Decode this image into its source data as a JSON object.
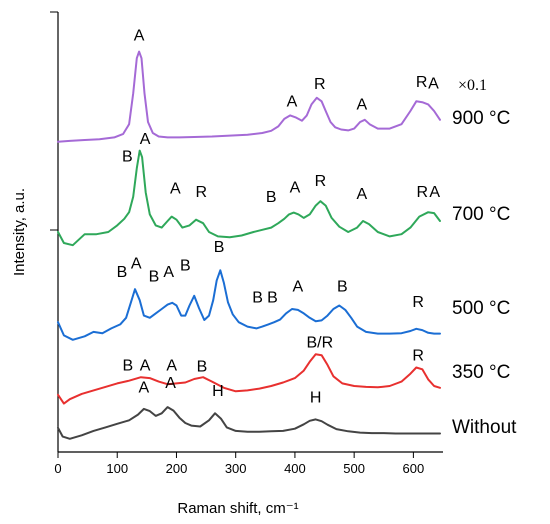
{
  "chart_data": {
    "type": "line",
    "title": "",
    "xlabel": "Raman shift, cm⁻¹",
    "ylabel": "Intensity, a.u.",
    "xlim": [
      0,
      650
    ],
    "xticks": [
      0,
      100,
      200,
      300,
      400,
      500,
      600
    ],
    "ylim": [
      0,
      1.0
    ],
    "grid": false,
    "series": [
      {
        "name": "Without",
        "color": "#444444",
        "offset": 0.03,
        "x": [
          0,
          8,
          20,
          40,
          60,
          80,
          100,
          120,
          135,
          145,
          155,
          165,
          175,
          185,
          195,
          205,
          215,
          225,
          240,
          255,
          265,
          275,
          285,
          300,
          320,
          340,
          360,
          380,
          400,
          415,
          425,
          435,
          445,
          455,
          470,
          490,
          510,
          530,
          550,
          570,
          590,
          610,
          630,
          645
        ],
        "y": [
          0.025,
          0.005,
          0.0,
          0.008,
          0.018,
          0.026,
          0.034,
          0.042,
          0.055,
          0.068,
          0.063,
          0.052,
          0.058,
          0.072,
          0.064,
          0.048,
          0.036,
          0.03,
          0.028,
          0.042,
          0.058,
          0.046,
          0.026,
          0.018,
          0.016,
          0.016,
          0.017,
          0.018,
          0.023,
          0.033,
          0.041,
          0.044,
          0.04,
          0.032,
          0.022,
          0.017,
          0.014,
          0.013,
          0.013,
          0.012,
          0.012,
          0.012,
          0.012,
          0.012
        ],
        "peak_labels": [
          {
            "text": "A",
            "x": 145,
            "y": 0.105
          },
          {
            "text": "A",
            "x": 190,
            "y": 0.115
          },
          {
            "text": "H",
            "x": 270,
            "y": 0.097
          },
          {
            "text": "H",
            "x": 435,
            "y": 0.083
          }
        ]
      },
      {
        "name": "350 °C",
        "color": "#e8302f",
        "offset": 0.11,
        "x": [
          0,
          10,
          20,
          40,
          60,
          80,
          100,
          120,
          140,
          155,
          170,
          185,
          200,
          215,
          230,
          245,
          260,
          280,
          300,
          320,
          340,
          360,
          380,
          400,
          415,
          425,
          435,
          445,
          455,
          465,
          480,
          500,
          520,
          540,
          560,
          580,
          595,
          605,
          615,
          625,
          635,
          645
        ],
        "y": [
          0.02,
          0.0,
          0.01,
          0.022,
          0.03,
          0.038,
          0.046,
          0.052,
          0.06,
          0.058,
          0.05,
          0.044,
          0.046,
          0.048,
          0.056,
          0.06,
          0.05,
          0.036,
          0.028,
          0.03,
          0.034,
          0.04,
          0.048,
          0.058,
          0.075,
          0.095,
          0.112,
          0.11,
          0.088,
          0.062,
          0.046,
          0.04,
          0.038,
          0.037,
          0.04,
          0.05,
          0.068,
          0.082,
          0.078,
          0.055,
          0.04,
          0.036
        ],
        "peak_labels": [
          {
            "text": "B",
            "x": 118,
            "y": 0.075
          },
          {
            "text": "A",
            "x": 147,
            "y": 0.075
          },
          {
            "text": "A",
            "x": 192,
            "y": 0.075
          },
          {
            "text": "B",
            "x": 243,
            "y": 0.073
          },
          {
            "text": "B/R",
            "x": 442,
            "y": 0.127
          },
          {
            "text": "R",
            "x": 608,
            "y": 0.098
          }
        ]
      },
      {
        "name": "500 °C",
        "color": "#1b6ed4",
        "offset": 0.255,
        "x": [
          0,
          10,
          25,
          45,
          60,
          75,
          90,
          105,
          115,
          123,
          130,
          138,
          145,
          155,
          165,
          175,
          185,
          193,
          200,
          208,
          215,
          222,
          230,
          238,
          247,
          255,
          262,
          268,
          274,
          280,
          287,
          295,
          305,
          320,
          335,
          345,
          355,
          365,
          375,
          385,
          395,
          405,
          415,
          425,
          435,
          445,
          455,
          465,
          475,
          485,
          495,
          505,
          520,
          540,
          560,
          580,
          595,
          605,
          615,
          625,
          635,
          645
        ],
        "y": [
          0.04,
          0.01,
          0.0,
          0.008,
          0.018,
          0.015,
          0.026,
          0.035,
          0.05,
          0.085,
          0.115,
          0.09,
          0.055,
          0.05,
          0.06,
          0.07,
          0.08,
          0.084,
          0.078,
          0.055,
          0.055,
          0.078,
          0.1,
          0.072,
          0.045,
          0.055,
          0.09,
          0.135,
          0.158,
          0.13,
          0.085,
          0.058,
          0.04,
          0.03,
          0.026,
          0.03,
          0.035,
          0.04,
          0.046,
          0.06,
          0.07,
          0.068,
          0.06,
          0.05,
          0.042,
          0.044,
          0.055,
          0.07,
          0.078,
          0.068,
          0.05,
          0.03,
          0.018,
          0.014,
          0.014,
          0.015,
          0.02,
          0.025,
          0.022,
          0.016,
          0.014,
          0.014
        ],
        "peak_labels": [
          {
            "text": "B",
            "x": 108,
            "y": 0.143
          },
          {
            "text": "A",
            "x": 132,
            "y": 0.162
          },
          {
            "text": "B",
            "x": 162,
            "y": 0.133
          },
          {
            "text": "A",
            "x": 187,
            "y": 0.143
          },
          {
            "text": "B",
            "x": 215,
            "y": 0.157
          },
          {
            "text": "B",
            "x": 272,
            "y": 0.2
          },
          {
            "text": "B",
            "x": 337,
            "y": 0.085
          },
          {
            "text": "B",
            "x": 362,
            "y": 0.085
          },
          {
            "text": "A",
            "x": 405,
            "y": 0.11
          },
          {
            "text": "B",
            "x": 480,
            "y": 0.11
          },
          {
            "text": "R",
            "x": 608,
            "y": 0.075
          }
        ]
      },
      {
        "name": "700 °C",
        "color": "#2fa85a",
        "offset": 0.47,
        "x": [
          0,
          10,
          25,
          45,
          65,
          85,
          100,
          112,
          120,
          127,
          133,
          138,
          142,
          148,
          155,
          165,
          175,
          185,
          192,
          200,
          210,
          222,
          233,
          245,
          255,
          270,
          290,
          310,
          330,
          345,
          360,
          372,
          382,
          390,
          398,
          406,
          415,
          425,
          435,
          443,
          452,
          462,
          475,
          490,
          505,
          515,
          525,
          540,
          560,
          580,
          595,
          610,
          625,
          635,
          645
        ],
        "y": [
          0.03,
          0.005,
          0.0,
          0.025,
          0.025,
          0.03,
          0.045,
          0.06,
          0.075,
          0.11,
          0.175,
          0.215,
          0.2,
          0.12,
          0.07,
          0.045,
          0.04,
          0.055,
          0.065,
          0.058,
          0.04,
          0.045,
          0.058,
          0.05,
          0.03,
          0.02,
          0.018,
          0.022,
          0.03,
          0.035,
          0.04,
          0.05,
          0.06,
          0.07,
          0.074,
          0.07,
          0.062,
          0.07,
          0.09,
          0.1,
          0.09,
          0.062,
          0.042,
          0.03,
          0.04,
          0.055,
          0.048,
          0.03,
          0.02,
          0.025,
          0.04,
          0.065,
          0.075,
          0.073,
          0.055
        ],
        "peak_labels": [
          {
            "text": "B",
            "x": 117,
            "y": 0.19
          },
          {
            "text": "A",
            "x": 147,
            "y": 0.23
          },
          {
            "text": "A",
            "x": 198,
            "y": 0.117
          },
          {
            "text": "R",
            "x": 242,
            "y": 0.11
          },
          {
            "text": "B",
            "x": 360,
            "y": 0.098
          },
          {
            "text": "A",
            "x": 400,
            "y": 0.12
          },
          {
            "text": "R",
            "x": 443,
            "y": 0.135
          },
          {
            "text": "A",
            "x": 513,
            "y": 0.105
          },
          {
            "text": "R",
            "x": 615,
            "y": 0.11
          },
          {
            "text": "A",
            "x": 636,
            "y": 0.11
          }
        ]
      },
      {
        "name": "900 °C",
        "color": "#a56ad6",
        "offset": 0.705,
        "x": [
          0,
          20,
          45,
          70,
          95,
          110,
          120,
          127,
          133,
          137,
          141,
          146,
          152,
          160,
          170,
          185,
          205,
          230,
          260,
          290,
          320,
          345,
          360,
          372,
          382,
          392,
          402,
          412,
          420,
          428,
          437,
          445,
          452,
          460,
          468,
          478,
          490,
          500,
          510,
          518,
          526,
          540,
          560,
          580,
          595,
          605,
          615,
          625,
          635,
          645
        ],
        "y": [
          0.0,
          0.002,
          0.004,
          0.006,
          0.01,
          0.018,
          0.04,
          0.11,
          0.19,
          0.205,
          0.19,
          0.11,
          0.045,
          0.02,
          0.012,
          0.01,
          0.01,
          0.011,
          0.012,
          0.014,
          0.016,
          0.02,
          0.025,
          0.035,
          0.052,
          0.06,
          0.055,
          0.048,
          0.06,
          0.085,
          0.1,
          0.092,
          0.07,
          0.045,
          0.033,
          0.028,
          0.026,
          0.03,
          0.045,
          0.05,
          0.04,
          0.03,
          0.03,
          0.04,
          0.07,
          0.092,
          0.09,
          0.085,
          0.07,
          0.05
        ],
        "peak_labels": [
          {
            "text": "A",
            "x": 137,
            "y": 0.23
          },
          {
            "text": "A",
            "x": 395,
            "y": 0.08
          },
          {
            "text": "R",
            "x": 442,
            "y": 0.12
          },
          {
            "text": "A",
            "x": 513,
            "y": 0.073
          },
          {
            "text": "R",
            "x": 614,
            "y": 0.125
          },
          {
            "text": "A",
            "x": 634,
            "y": 0.121
          }
        ]
      }
    ],
    "annotations": [
      {
        "text": "×0.1",
        "series": "900 °C"
      }
    ]
  }
}
